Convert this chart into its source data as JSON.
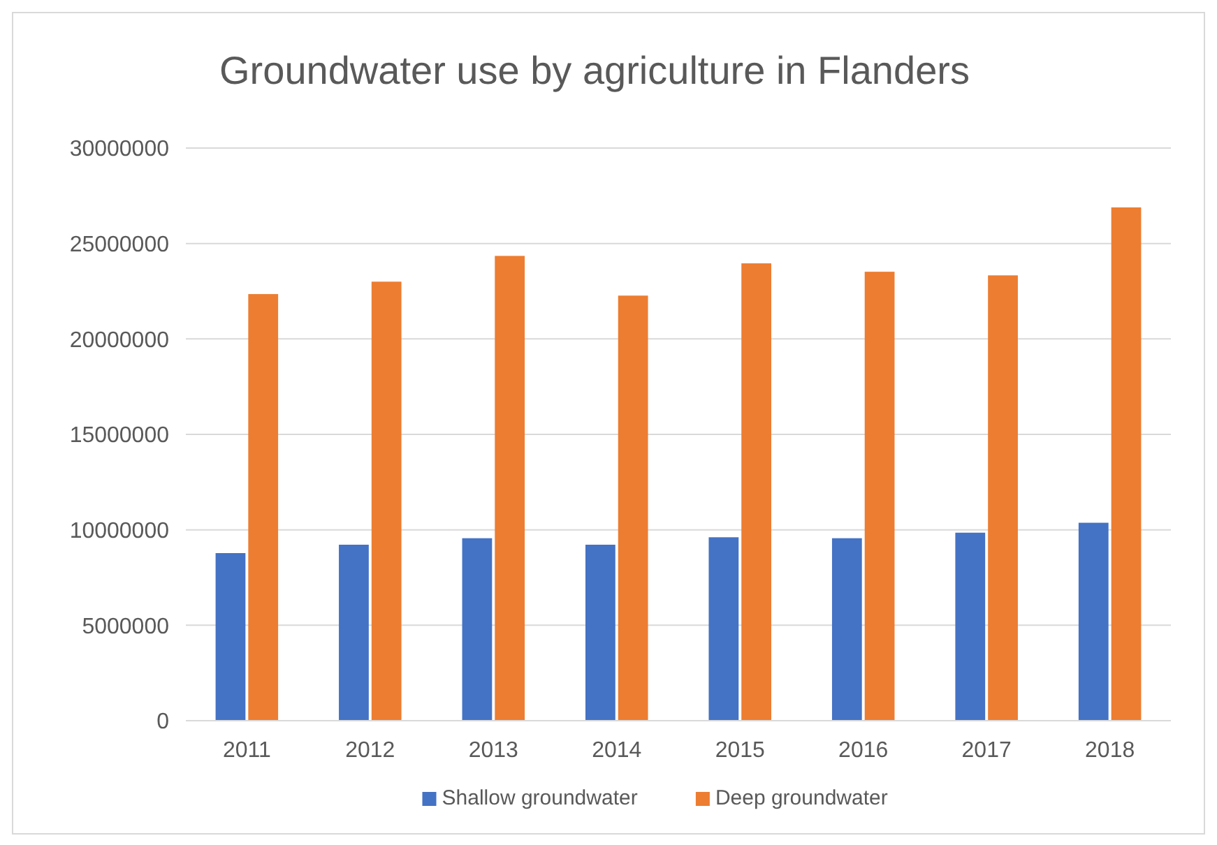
{
  "chart_data": {
    "type": "bar",
    "title": "Groundwater use by agriculture in Flanders",
    "categories": [
      "2011",
      "2012",
      "2013",
      "2014",
      "2015",
      "2016",
      "2017",
      "2018"
    ],
    "series": [
      {
        "name": "Shallow groundwater",
        "color": "#4472c4",
        "values": [
          8780000,
          9220000,
          9560000,
          9220000,
          9610000,
          9560000,
          9850000,
          10370000
        ]
      },
      {
        "name": "Deep groundwater",
        "color": "#ed7d31",
        "values": [
          22350000,
          23000000,
          24350000,
          22270000,
          23960000,
          23520000,
          23330000,
          26890000
        ]
      }
    ],
    "ylim": [
      0,
      30000000
    ],
    "yticks": [
      0,
      5000000,
      10000000,
      15000000,
      20000000,
      25000000,
      30000000
    ],
    "grid": "y",
    "legend": "bottom"
  }
}
